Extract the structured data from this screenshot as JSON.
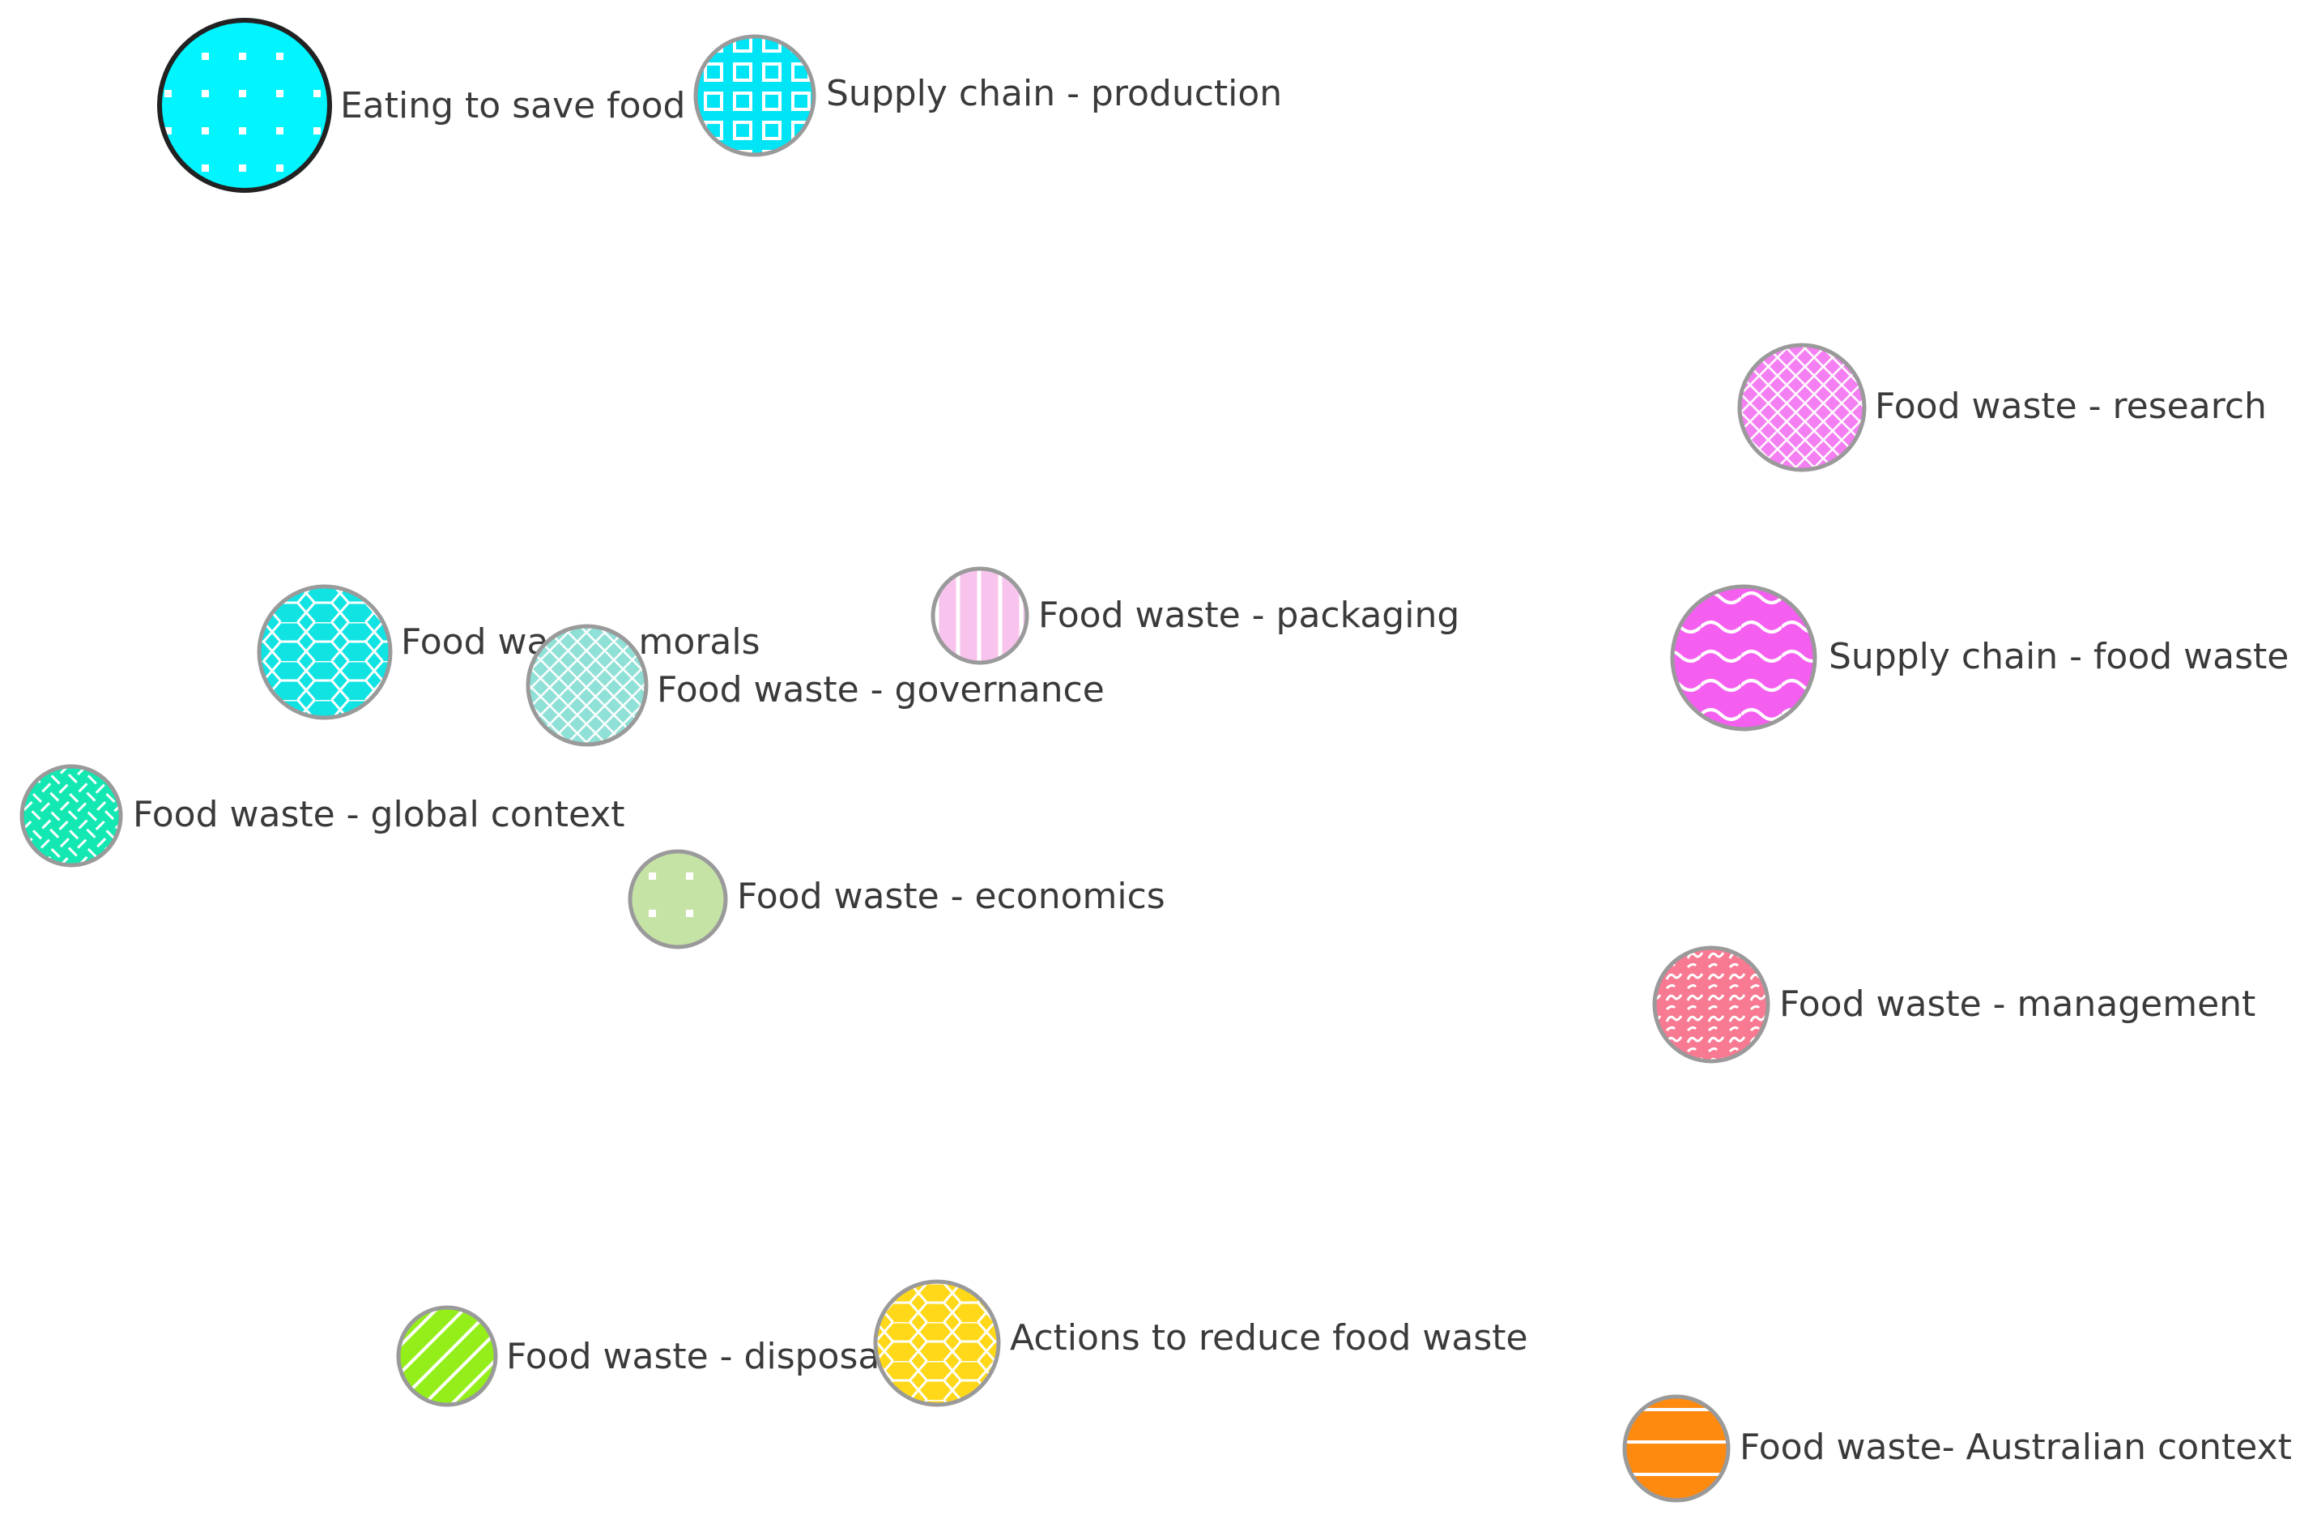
{
  "concepts": [
    {
      "id": "eating",
      "label": "Eating to save food waste",
      "color": "#00F5FF",
      "pattern": "dots",
      "selected": true
    },
    {
      "id": "supply-production",
      "label": "Supply chain - production",
      "color": "#00E5F5",
      "pattern": "squares",
      "selected": false
    },
    {
      "id": "research",
      "label": "Food waste - research",
      "color": "#F47FF2",
      "pattern": "grid",
      "selected": false
    },
    {
      "id": "packaging",
      "label": "Food waste - packaging",
      "color": "#F8C4EE",
      "pattern": "vlines",
      "selected": false
    },
    {
      "id": "supply-food-waste",
      "label": "Supply chain - food waste",
      "color": "#F45FF0",
      "pattern": "waves",
      "selected": false
    },
    {
      "id": "morals",
      "label": "Food waste - morals",
      "color": "#11E3E3",
      "pattern": "hex",
      "selected": false
    },
    {
      "id": "governance",
      "label": "Food waste - governance",
      "color": "#8FE0D6",
      "pattern": "grid",
      "selected": false
    },
    {
      "id": "global",
      "label": "Food waste - global context",
      "color": "#14E8B2",
      "pattern": "weave",
      "selected": false
    },
    {
      "id": "economics",
      "label": "Food waste - economics",
      "color": "#C6E3A6",
      "pattern": "dots",
      "selected": false
    },
    {
      "id": "management",
      "label": "Food waste - management",
      "color": "#F87A92",
      "pattern": "curls",
      "selected": false
    },
    {
      "id": "disposal",
      "label": "Food waste - disposal",
      "color": "#94EE1A",
      "pattern": "diag",
      "selected": false
    },
    {
      "id": "actions",
      "label": "Actions to reduce food waste",
      "color": "#FFD81A",
      "pattern": "hex",
      "selected": false
    },
    {
      "id": "australian",
      "label": "Food waste- Australian context",
      "color": "#FF8A10",
      "pattern": "hlines",
      "selected": false
    }
  ]
}
